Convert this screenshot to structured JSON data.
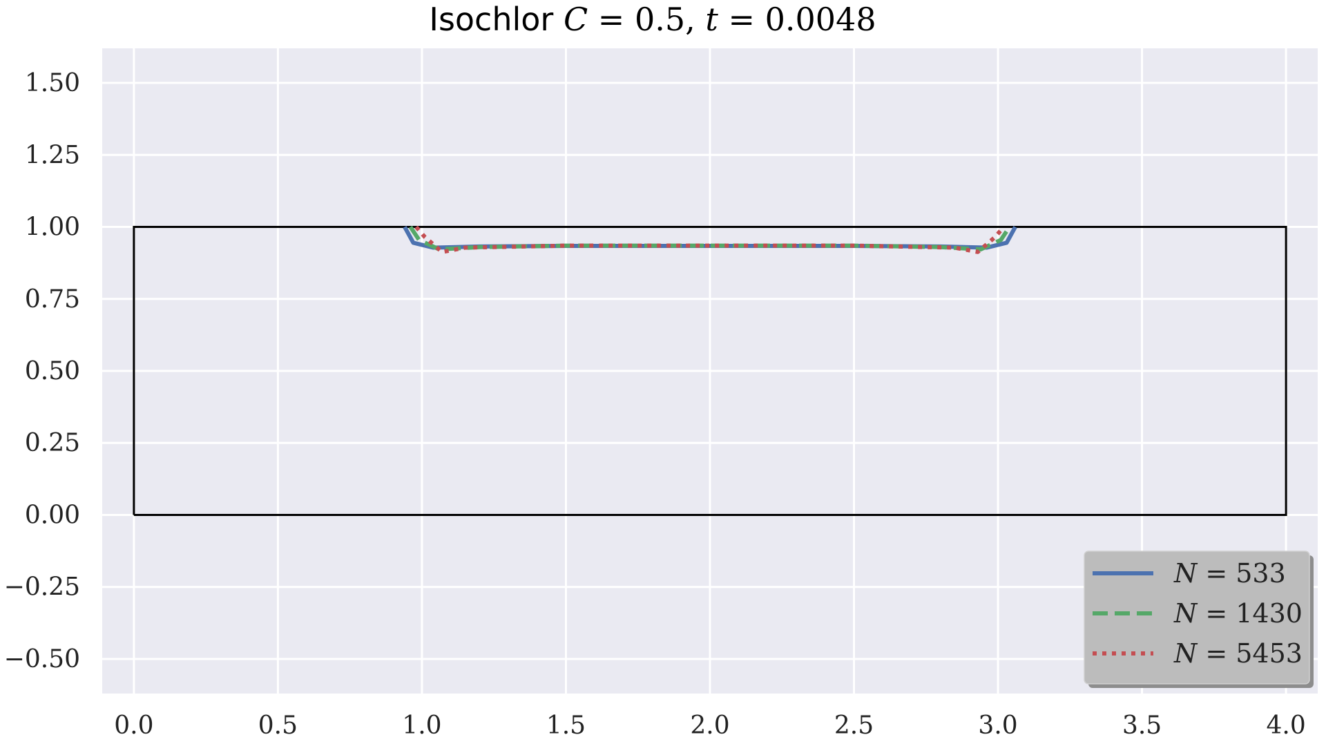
{
  "chart_data": {
    "type": "line",
    "title": {
      "prefix": "Isochlor ",
      "var1": "C",
      "eq1": " = 0.5, ",
      "var2": "t",
      "eq2": " = 0.0048"
    },
    "xlabel": "",
    "ylabel": "",
    "xlim": [
      -0.11,
      4.11
    ],
    "ylim": [
      -0.62,
      1.62
    ],
    "xticks": [
      0.0,
      0.5,
      1.0,
      1.5,
      2.0,
      2.5,
      3.0,
      3.5,
      4.0
    ],
    "xtick_labels": [
      "0.0",
      "0.5",
      "1.0",
      "1.5",
      "2.0",
      "2.5",
      "3.0",
      "3.5",
      "4.0"
    ],
    "yticks": [
      1.5,
      1.25,
      1.0,
      0.75,
      0.5,
      0.25,
      0.0,
      -0.25,
      -0.5
    ],
    "ytick_labels": [
      "1.50",
      "1.25",
      "1.00",
      "0.75",
      "0.50",
      "0.25",
      "0.00",
      "−0.25",
      "−0.50"
    ],
    "grid": true,
    "legend_position": "bottom-right",
    "domain_box": {
      "x": [
        0,
        0,
        4,
        4,
        0
      ],
      "y": [
        0,
        1,
        1,
        0,
        0
      ],
      "color": "#000000"
    },
    "series": [
      {
        "var": "N",
        "eq": " = 533",
        "color": "#4c72b0",
        "dash": "solid",
        "x": [
          0.94,
          0.97,
          1.04,
          1.2,
          1.5,
          2.0,
          2.5,
          2.8,
          2.96,
          3.03,
          3.06
        ],
        "y": [
          1.0,
          0.945,
          0.928,
          0.932,
          0.934,
          0.934,
          0.934,
          0.932,
          0.928,
          0.945,
          1.0
        ]
      },
      {
        "var": "N",
        "eq": " = 1430",
        "color": "#55a868",
        "dash": "dashed",
        "x": [
          0.96,
          0.99,
          1.06,
          1.2,
          1.5,
          2.0,
          2.5,
          2.8,
          2.94,
          3.01,
          3.04
        ],
        "y": [
          1.0,
          0.955,
          0.922,
          0.93,
          0.935,
          0.935,
          0.935,
          0.93,
          0.922,
          0.955,
          1.0
        ]
      },
      {
        "var": "N",
        "eq": " = 5453",
        "color": "#c44e52",
        "dash": "dotted",
        "x": [
          0.98,
          1.01,
          1.07,
          1.15,
          1.5,
          2.0,
          2.5,
          2.85,
          2.93,
          2.99,
          3.02
        ],
        "y": [
          1.0,
          0.965,
          0.913,
          0.928,
          0.935,
          0.935,
          0.935,
          0.928,
          0.913,
          0.965,
          1.0
        ]
      }
    ]
  }
}
